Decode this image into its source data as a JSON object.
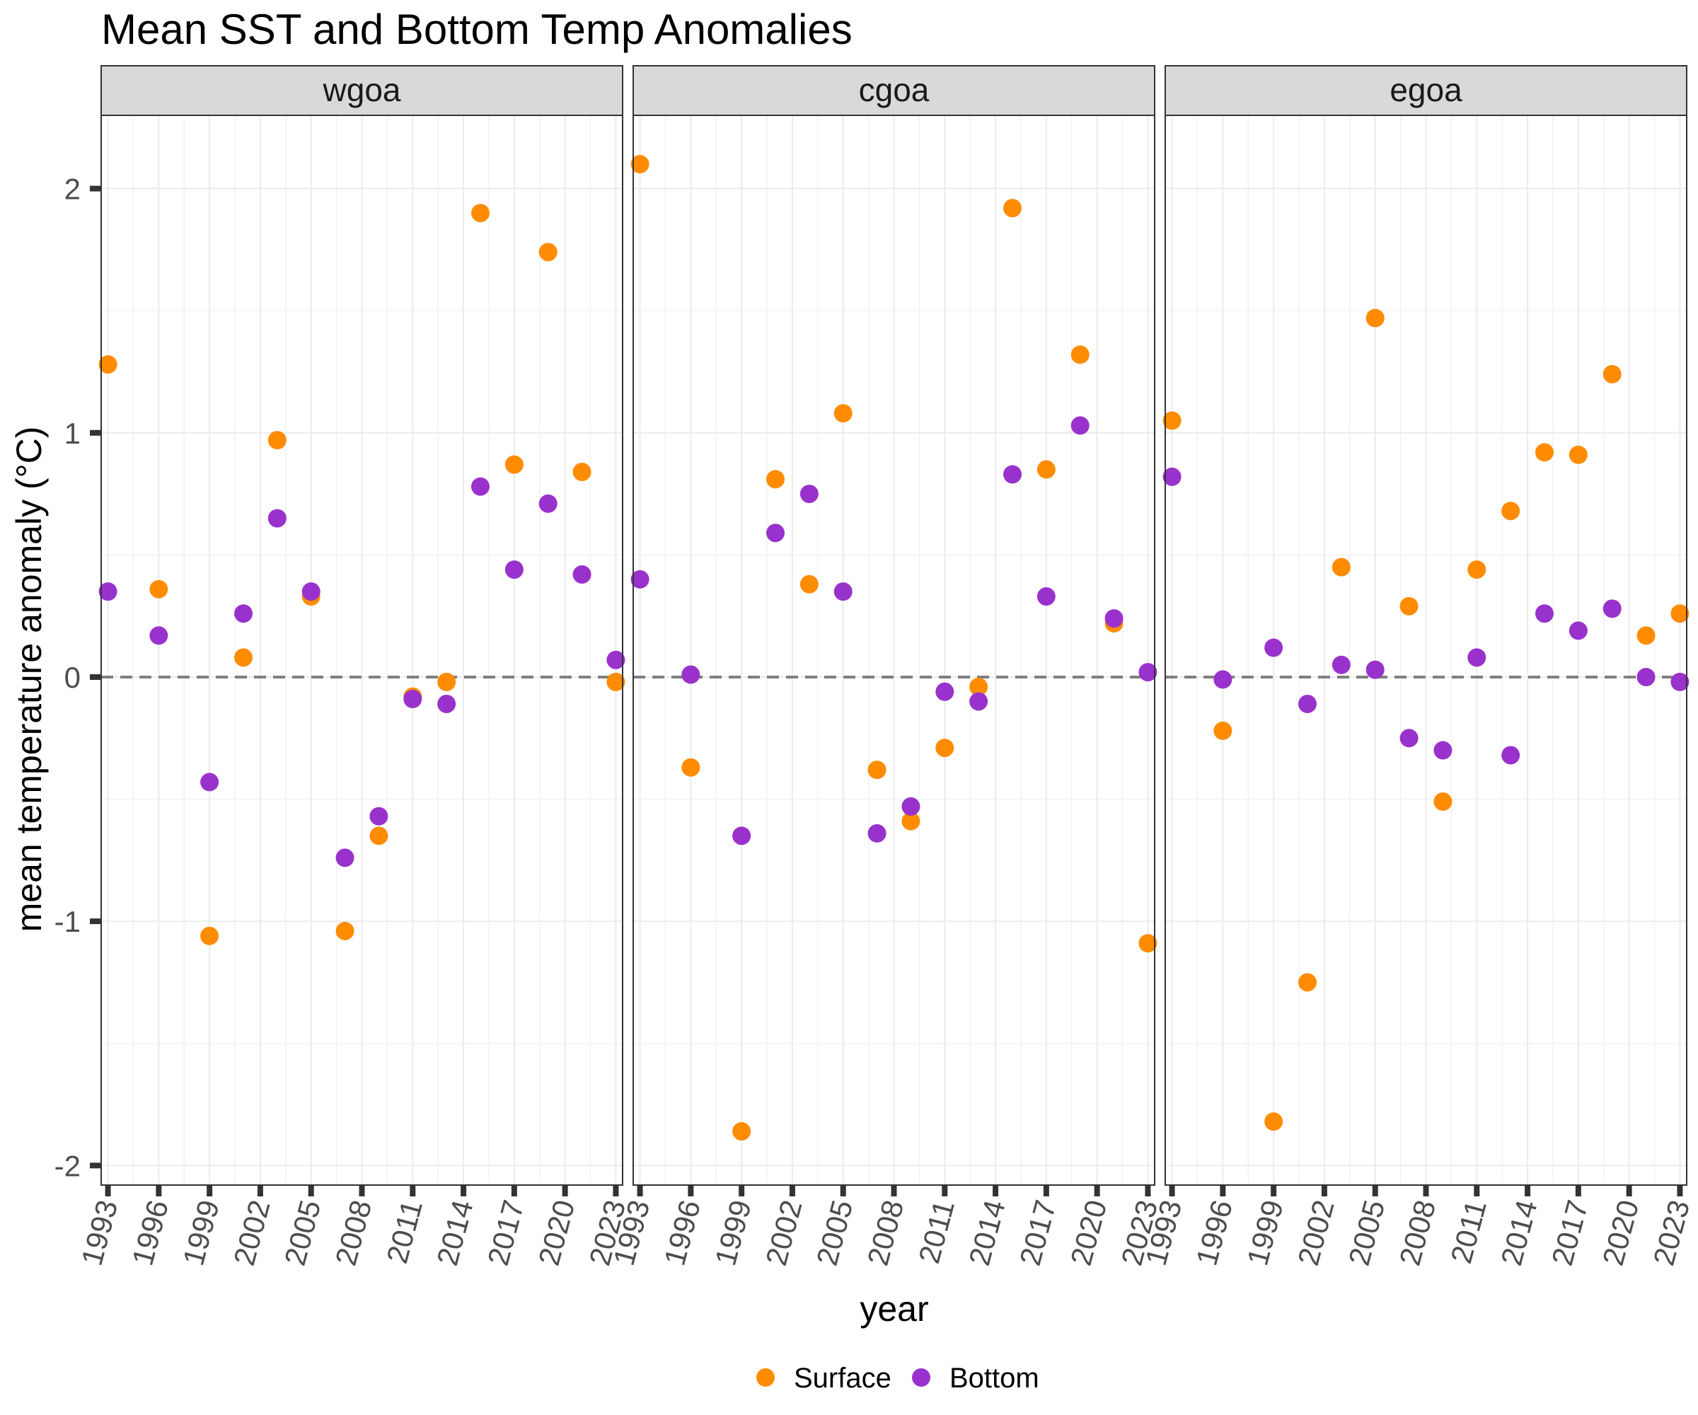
{
  "chart_data": {
    "type": "scatter",
    "title": "Mean SST and Bottom Temp Anomalies",
    "xlabel": "year",
    "ylabel": "mean temperature anomaly (°C)",
    "xlim": [
      1992.6,
      2023.4
    ],
    "ylim": [
      -2.08,
      2.3
    ],
    "x_ticks": [
      1993,
      1996,
      1999,
      2002,
      2005,
      2008,
      2011,
      2014,
      2017,
      2020,
      2023
    ],
    "y_ticks": [
      2,
      1,
      0,
      -1,
      -2
    ],
    "reference_line": 0,
    "grid": true,
    "legend_position": "bottom",
    "series_styles": [
      {
        "name": "Surface",
        "color": "#FF8C00"
      },
      {
        "name": "Bottom",
        "color": "#9932CC"
      }
    ],
    "panels": [
      {
        "name": "wgoa",
        "series": [
          {
            "name": "Surface",
            "x": [
              1993,
              1996,
              1999,
              2001,
              2003,
              2005,
              2007,
              2009,
              2011,
              2013,
              2015,
              2017,
              2019,
              2021,
              2023
            ],
            "y": [
              1.28,
              0.36,
              -1.06,
              0.08,
              0.97,
              0.33,
              -1.04,
              -0.65,
              -0.08,
              -0.02,
              1.9,
              0.87,
              1.74,
              0.84,
              -0.02
            ]
          },
          {
            "name": "Bottom",
            "x": [
              1993,
              1996,
              1999,
              2001,
              2003,
              2005,
              2007,
              2009,
              2011,
              2013,
              2015,
              2017,
              2019,
              2021,
              2023
            ],
            "y": [
              0.35,
              0.17,
              -0.43,
              0.26,
              0.65,
              0.35,
              -0.74,
              -0.57,
              -0.09,
              -0.11,
              0.78,
              0.44,
              0.71,
              0.42,
              0.07
            ]
          }
        ]
      },
      {
        "name": "cgoa",
        "series": [
          {
            "name": "Surface",
            "x": [
              1993,
              1996,
              1999,
              2001,
              2003,
              2005,
              2007,
              2009,
              2011,
              2013,
              2015,
              2017,
              2019,
              2021,
              2023
            ],
            "y": [
              2.1,
              -0.37,
              -1.86,
              0.81,
              0.38,
              1.08,
              -0.38,
              -0.59,
              -0.29,
              -0.04,
              1.92,
              0.85,
              1.32,
              0.22,
              -1.09
            ]
          },
          {
            "name": "Bottom",
            "x": [
              1993,
              1996,
              1999,
              2001,
              2003,
              2005,
              2007,
              2009,
              2011,
              2013,
              2015,
              2017,
              2019,
              2021,
              2023
            ],
            "y": [
              0.4,
              0.01,
              -0.65,
              0.59,
              0.75,
              0.35,
              -0.64,
              -0.53,
              -0.06,
              -0.1,
              0.83,
              0.33,
              1.03,
              0.24,
              0.02
            ]
          }
        ]
      },
      {
        "name": "egoa",
        "series": [
          {
            "name": "Surface",
            "x": [
              1993,
              1996,
              1999,
              2001,
              2003,
              2005,
              2007,
              2009,
              2011,
              2013,
              2015,
              2017,
              2019,
              2021,
              2023
            ],
            "y": [
              1.05,
              -0.22,
              -1.82,
              -1.25,
              0.45,
              1.47,
              0.29,
              -0.51,
              0.44,
              0.68,
              0.92,
              0.91,
              1.24,
              0.17,
              0.26
            ]
          },
          {
            "name": "Bottom",
            "x": [
              1993,
              1996,
              1999,
              2001,
              2003,
              2005,
              2007,
              2009,
              2011,
              2013,
              2015,
              2017,
              2019,
              2021,
              2023
            ],
            "y": [
              0.82,
              -0.01,
              0.12,
              -0.11,
              0.05,
              0.03,
              -0.25,
              -0.3,
              0.08,
              -0.32,
              0.26,
              0.19,
              0.28,
              0.0,
              -0.02
            ]
          }
        ]
      }
    ]
  }
}
